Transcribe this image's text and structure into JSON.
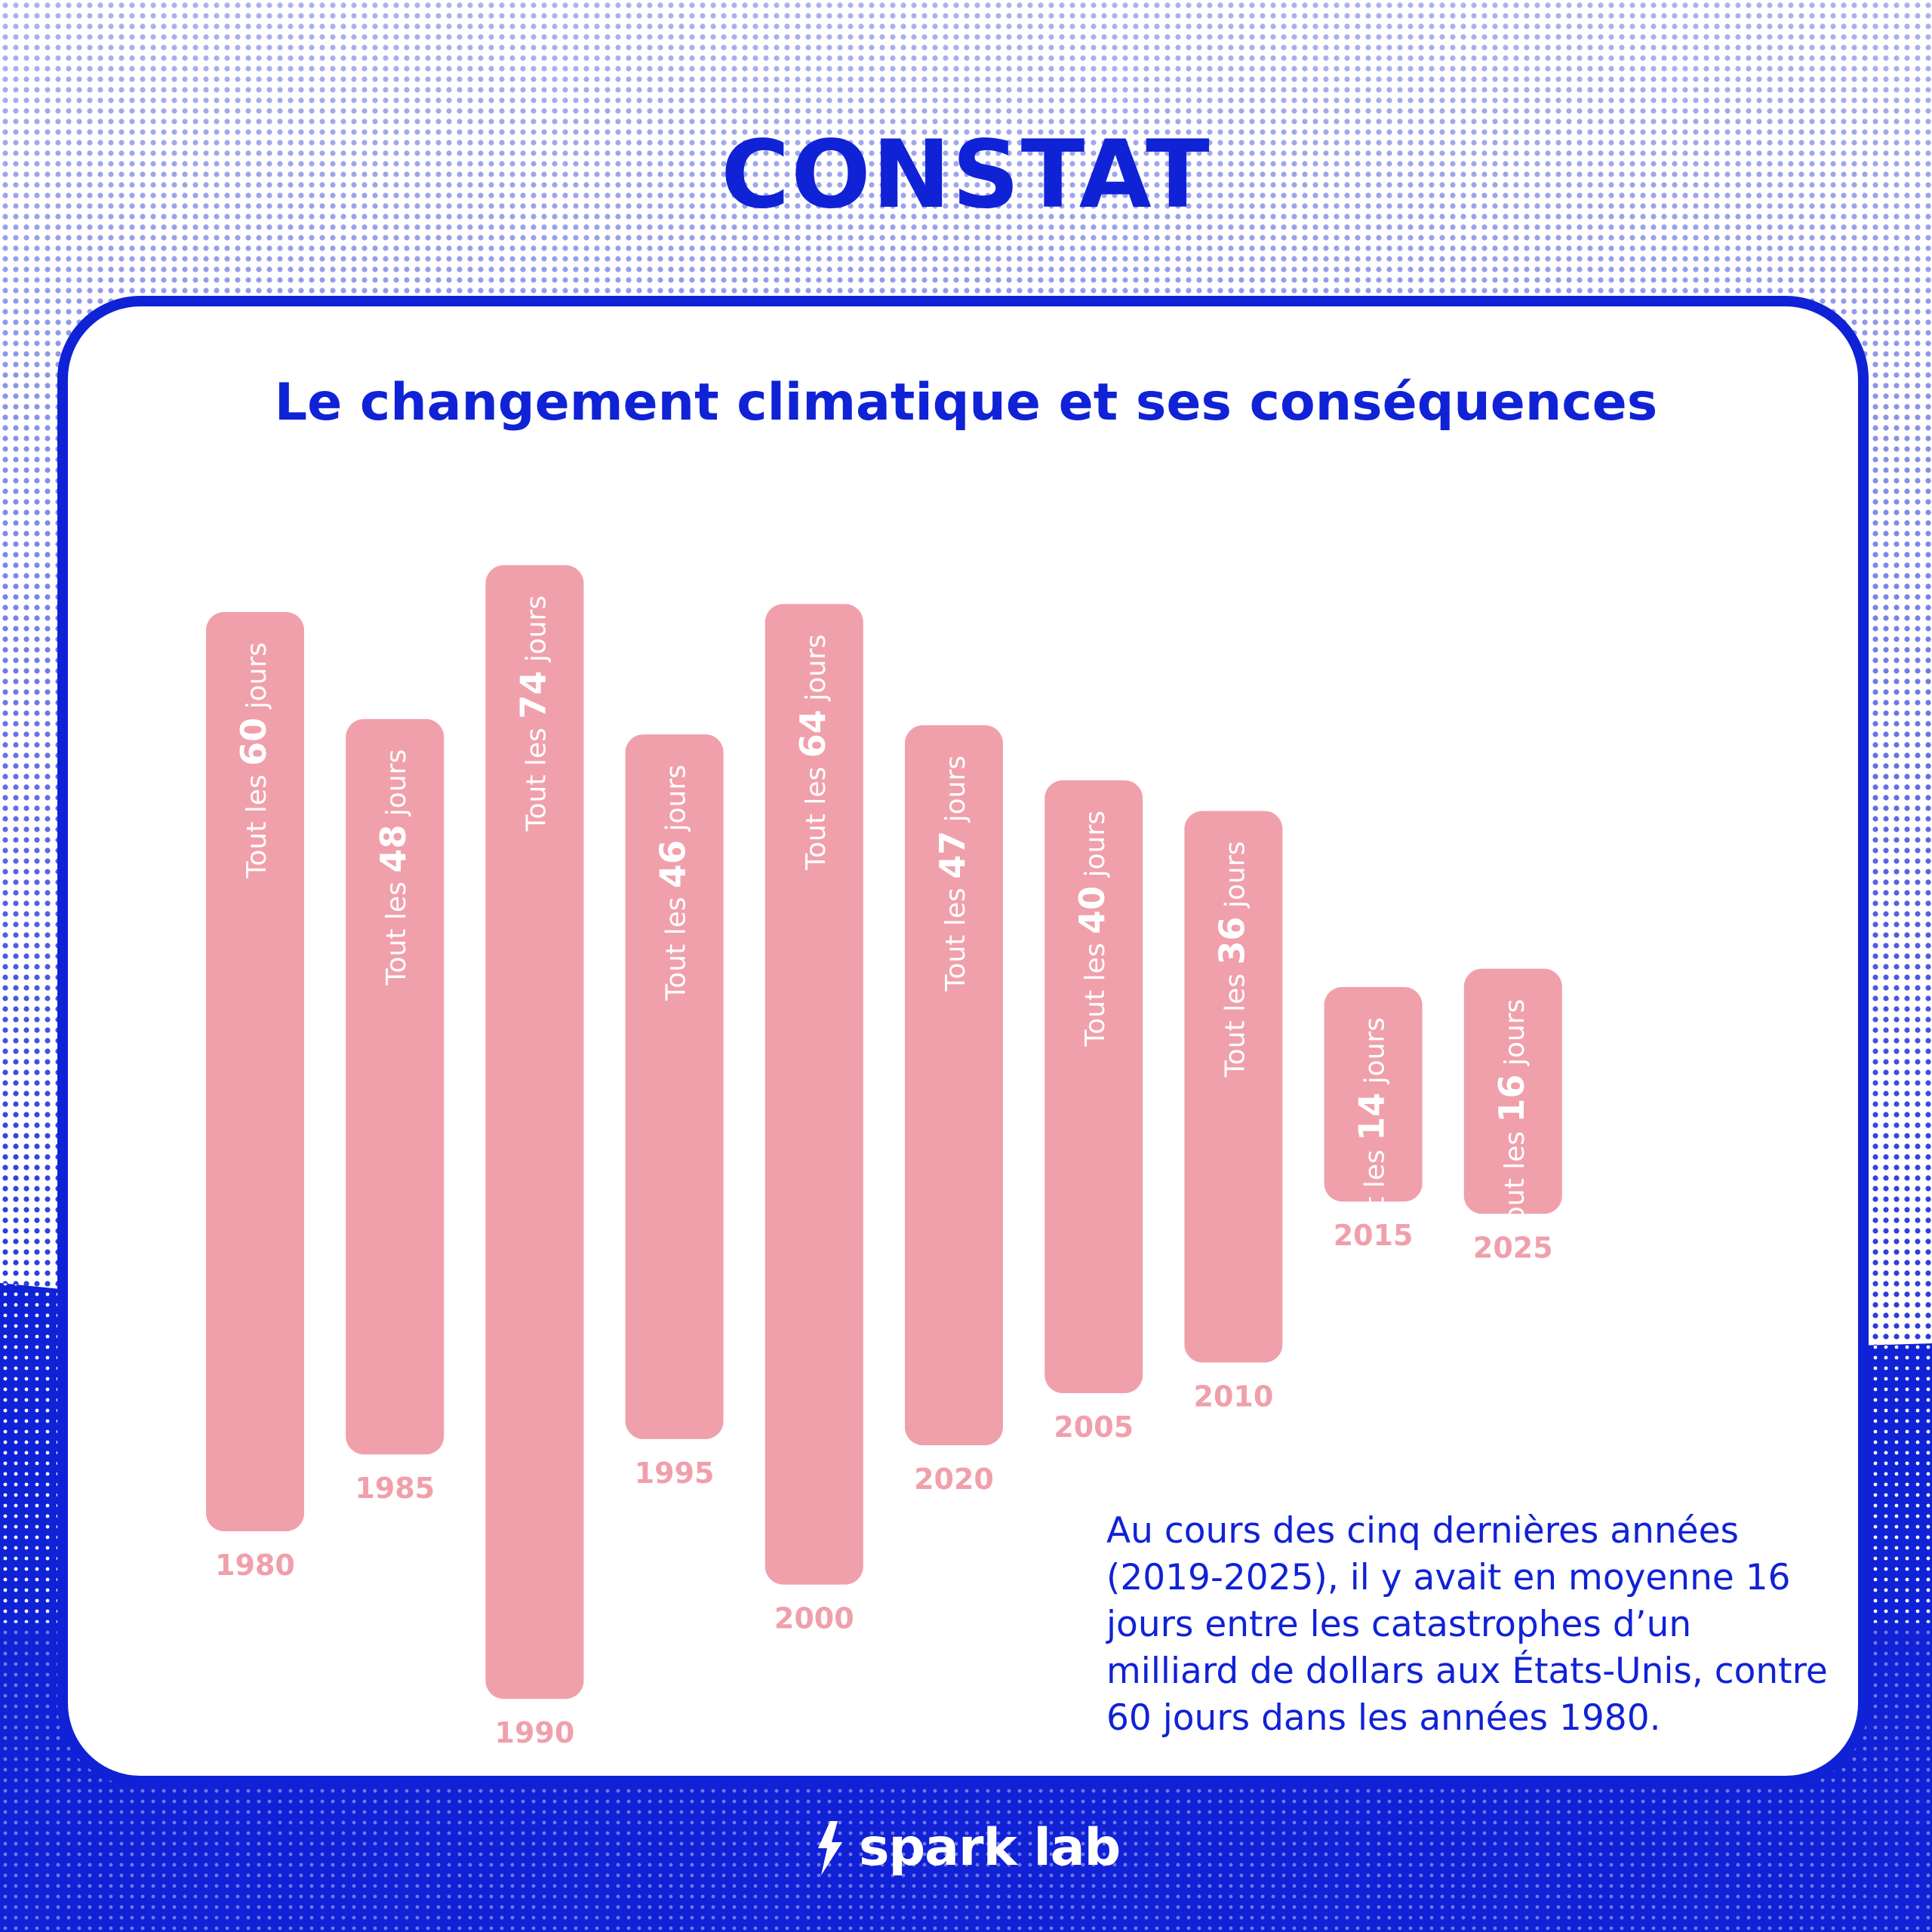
{
  "page": {
    "title": "CONSTAT",
    "subtitle": "Le changement climatique et ses conséquences",
    "brand": "spark lab"
  },
  "colors": {
    "brand_blue": "#1022d6",
    "bar_pink": "#f0a0ab",
    "label_pink": "#f0a0ab",
    "card_bg": "#ffffff",
    "bar_text": "#ffffff"
  },
  "chart_data": {
    "type": "bar",
    "title": "Le changement climatique et ses conséquences",
    "categories": [
      "1980",
      "1985",
      "1990",
      "1995",
      "2000",
      "2020",
      "2005",
      "2010",
      "2015",
      "2025"
    ],
    "values": [
      60,
      48,
      74,
      46,
      64,
      47,
      40,
      36,
      14,
      16
    ],
    "label_prefix": "Tout les",
    "label_suffix": "jours",
    "xlabel": "",
    "ylabel": "",
    "grid": false,
    "legend": "none"
  },
  "note": {
    "text": "Au cours des cinq dernières années (2019-2025), il y avait en moyenne 16 jours entre les catastrophes d’un milliard de dollars aux États-Unis, contre 60 jours dans les années 1980."
  }
}
